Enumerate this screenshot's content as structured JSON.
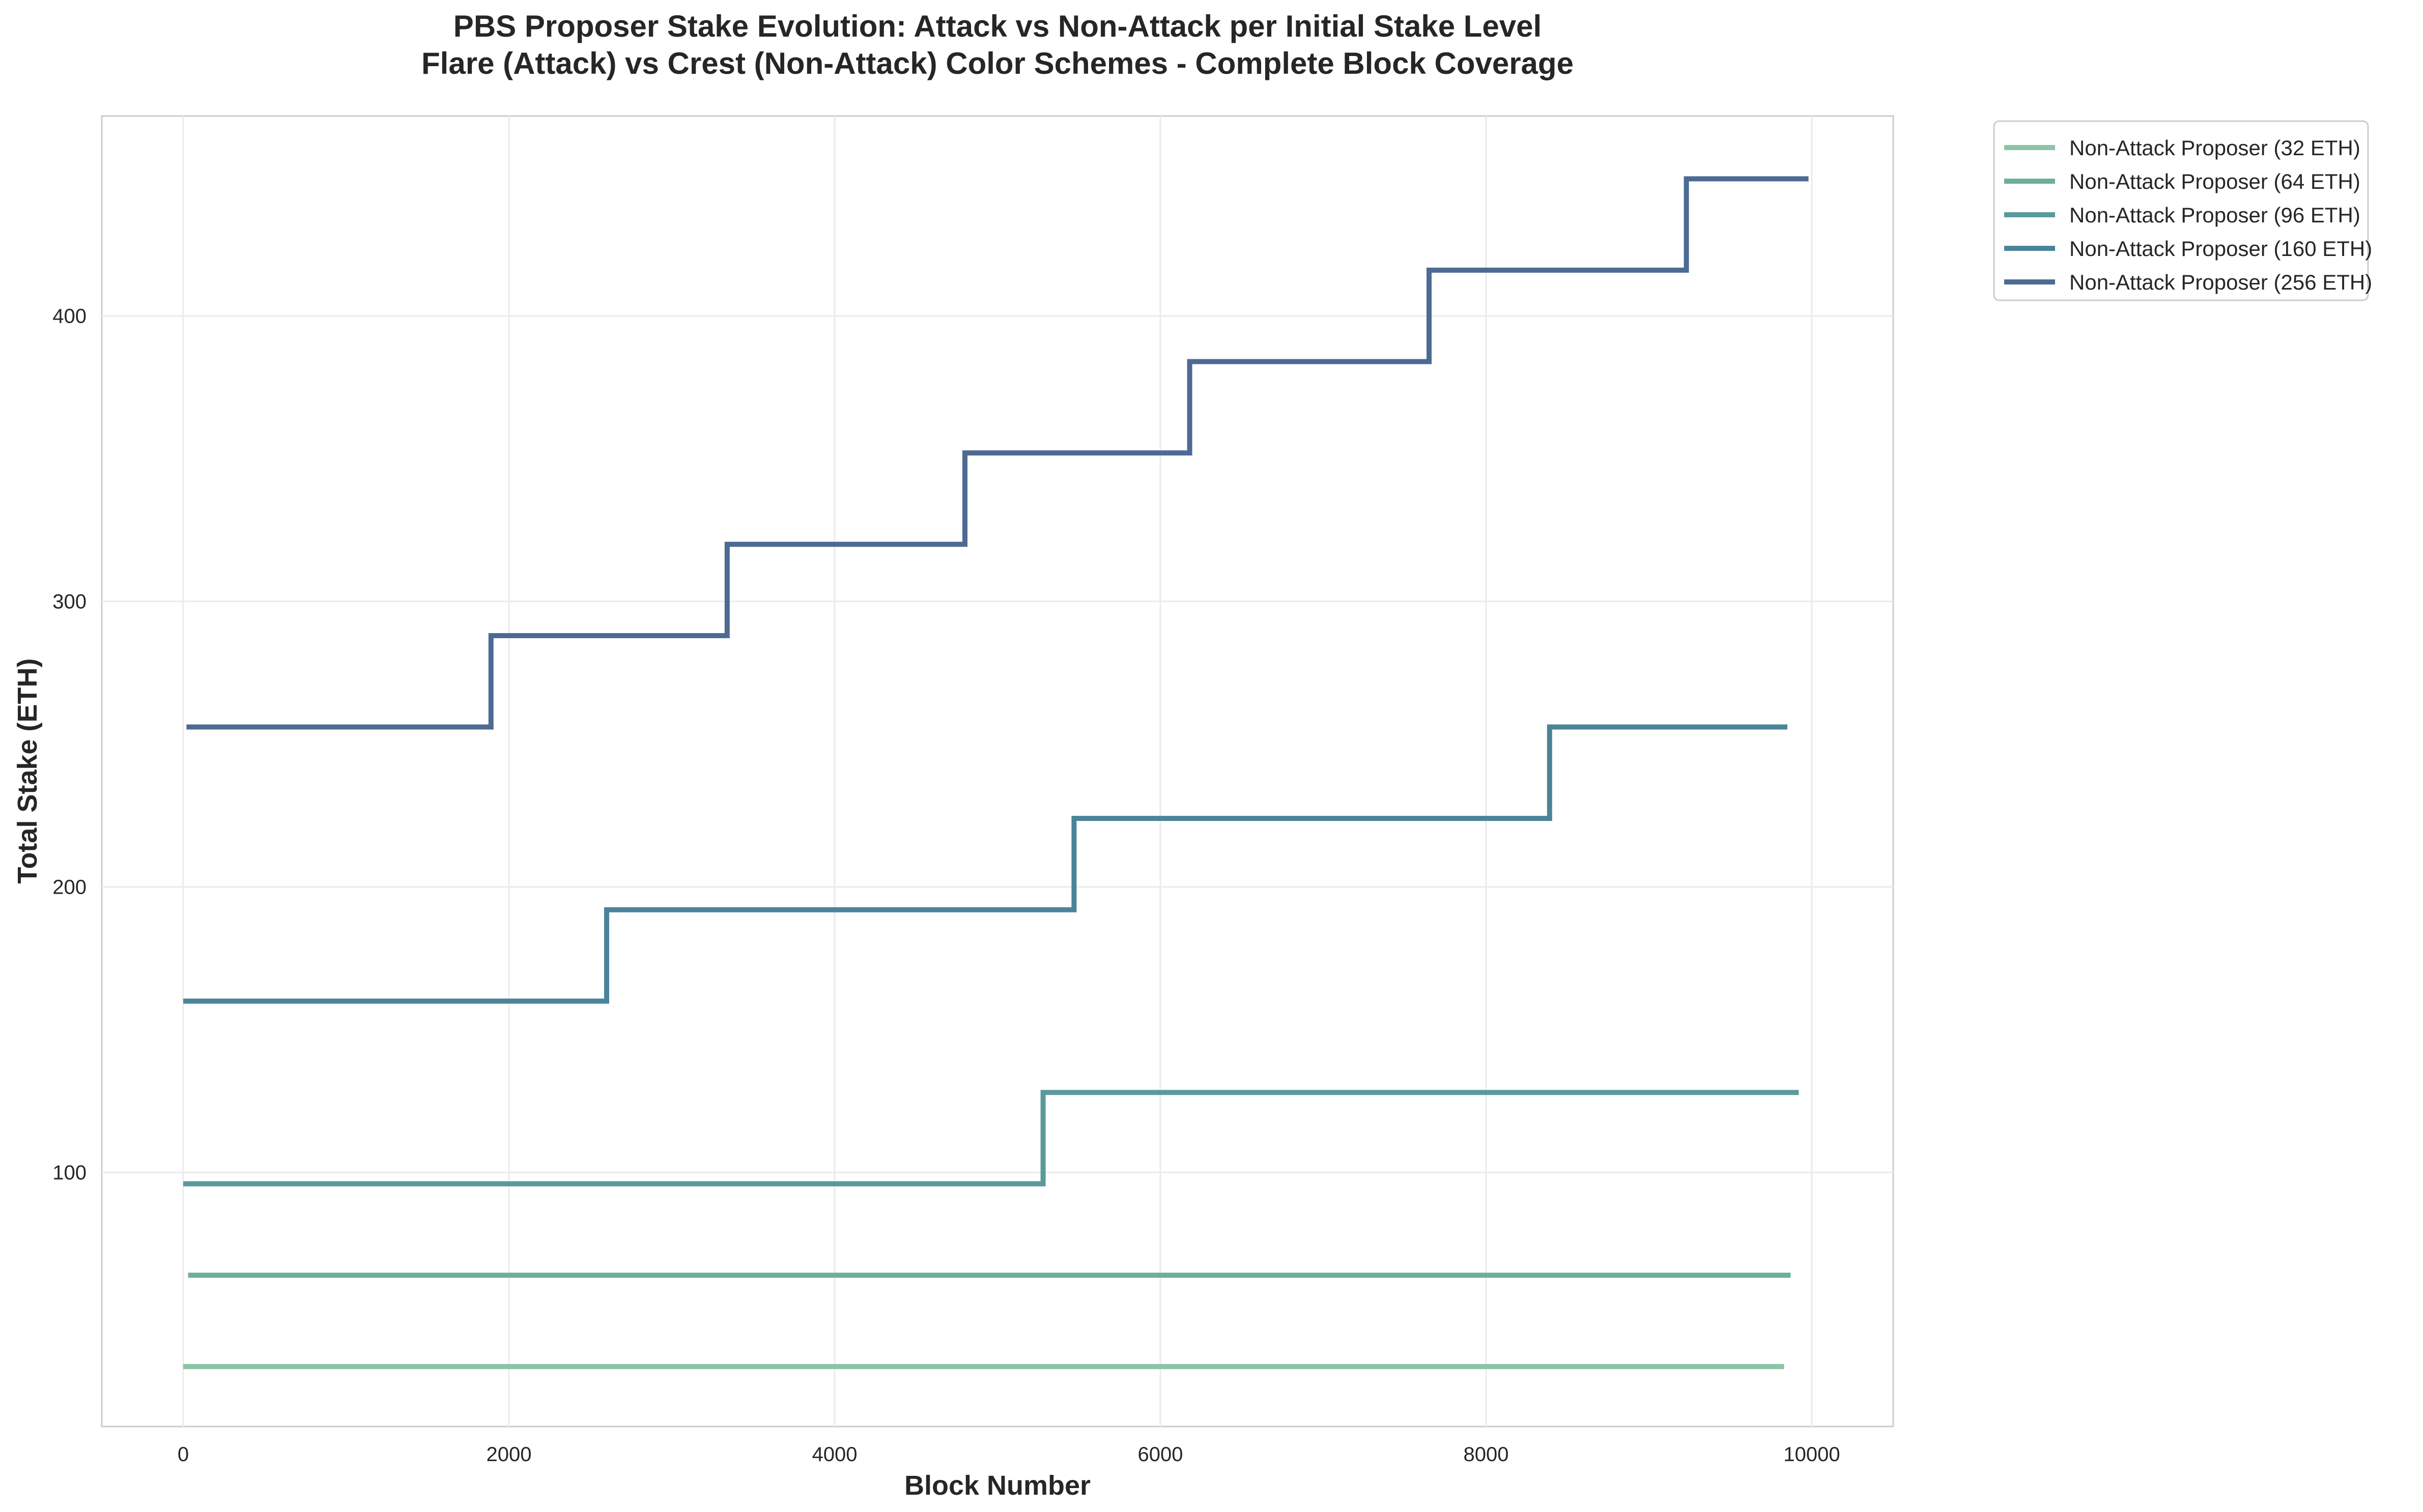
{
  "chart_data": {
    "type": "line",
    "step": true,
    "title": "PBS Proposer Stake Evolution: Attack vs Non-Attack per Initial Stake Level",
    "subtitle": "Flare (Attack) vs Crest (Non-Attack) Color Schemes - Complete Block Coverage",
    "xlabel": "Block Number",
    "ylabel": "Total Stake (ETH)",
    "xlim": [
      -500,
      10500
    ],
    "ylim": [
      11,
      470
    ],
    "xticks": [
      0,
      2000,
      4000,
      6000,
      8000,
      10000
    ],
    "yticks": [
      100,
      200,
      300,
      400
    ],
    "grid": true,
    "legend_position": "outside-top-right",
    "series": [
      {
        "name": "Non-Attack Proposer (32 ETH)",
        "color": "#8bc4a6",
        "points": [
          [
            0,
            32
          ],
          [
            9830,
            32
          ]
        ]
      },
      {
        "name": "Non-Attack Proposer (64 ETH)",
        "color": "#6eae9c",
        "points": [
          [
            30,
            64
          ],
          [
            9870,
            64
          ]
        ]
      },
      {
        "name": "Non-Attack Proposer (96 ETH)",
        "color": "#5a9a9c",
        "points": [
          [
            0,
            96
          ],
          [
            5280,
            96
          ],
          [
            5280,
            128
          ],
          [
            9920,
            128
          ]
        ]
      },
      {
        "name": "Non-Attack Proposer (160 ETH)",
        "color": "#4a8499",
        "points": [
          [
            0,
            160
          ],
          [
            2600,
            160
          ],
          [
            2600,
            192
          ],
          [
            5470,
            192
          ],
          [
            5470,
            224
          ],
          [
            8390,
            224
          ],
          [
            8390,
            256
          ],
          [
            9850,
            256
          ]
        ]
      },
      {
        "name": "Non-Attack Proposer (256 ETH)",
        "color": "#4d6a93",
        "points": [
          [
            20,
            256
          ],
          [
            1890,
            256
          ],
          [
            1890,
            288
          ],
          [
            3340,
            288
          ],
          [
            3340,
            320
          ],
          [
            4800,
            320
          ],
          [
            4800,
            352
          ],
          [
            6180,
            352
          ],
          [
            6180,
            384
          ],
          [
            7650,
            384
          ],
          [
            7650,
            416
          ],
          [
            9230,
            416
          ],
          [
            9230,
            448
          ],
          [
            9980,
            448
          ]
        ]
      }
    ]
  }
}
